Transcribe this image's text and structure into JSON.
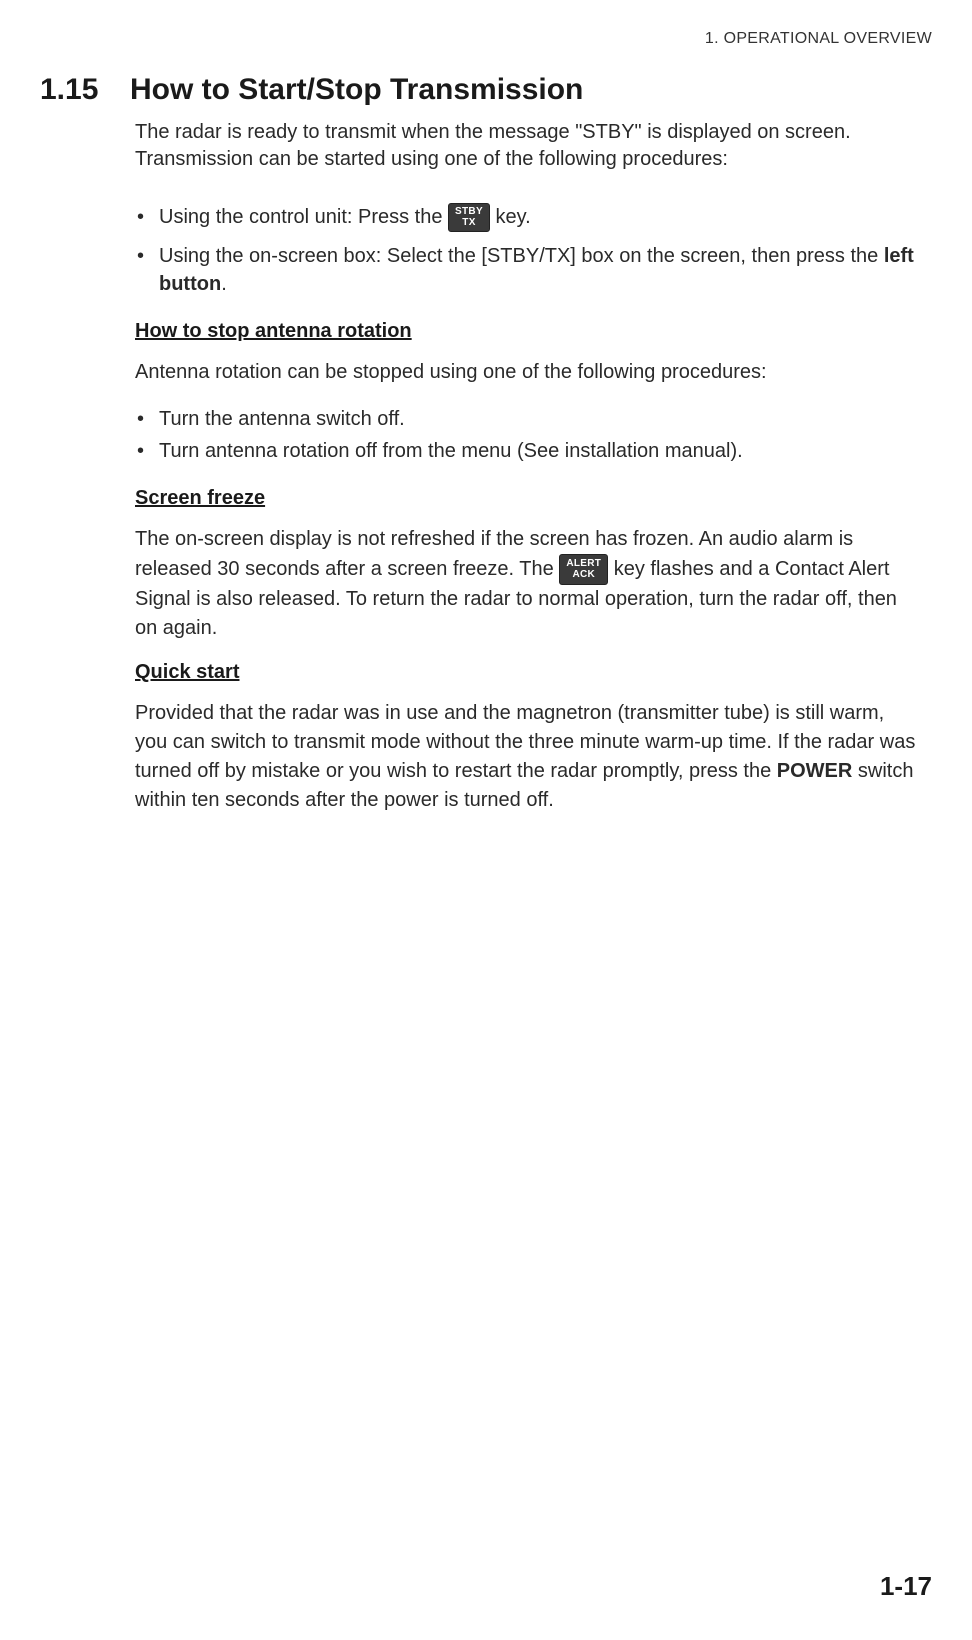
{
  "header": {
    "chapter_label": "1.  OPERATIONAL OVERVIEW"
  },
  "section": {
    "number": "1.15",
    "title": "How to Start/Stop Transmission",
    "intro": "The radar is ready to transmit when the message \"STBY\" is displayed on screen. Transmission can be started using one of the following procedures:",
    "bullets_main": {
      "b1_pre": "Using the control unit: Press the ",
      "b1_key_line1": "STBY",
      "b1_key_line2": "TX",
      "b1_post": " key.",
      "b2_pre": "Using the on-screen box: Select the [STBY/TX] box on the screen, then press the ",
      "b2_bold": "left button",
      "b2_post": "."
    },
    "sub1": {
      "heading": "How to stop antenna rotation",
      "para": "Antenna rotation can be stopped using one of the following procedures:",
      "bullets": {
        "b1": "Turn the antenna switch off.",
        "b2": "Turn antenna rotation off from the menu (See installation manual)."
      }
    },
    "sub2": {
      "heading": "Screen freeze",
      "para_pre": "The on-screen display is not refreshed if the screen has frozen. An audio alarm is released 30 seconds after a screen freeze. The ",
      "key_line1": "ALERT",
      "key_line2": "ACK",
      "para_post": " key flashes and a Contact Alert Signal is also released. To return the radar to normal operation, turn the radar off, then on again."
    },
    "sub3": {
      "heading": "Quick start",
      "para_pre": "Provided that the radar was in use and the magnetron (transmitter tube) is still warm, you can switch to transmit mode without the three minute warm-up time. If the radar was turned off by mistake or you wish to restart the radar promptly, press the ",
      "para_bold": "POWER",
      "para_post": " switch within ten seconds after the power is turned off."
    }
  },
  "footer": {
    "page_number": "1-17"
  }
}
